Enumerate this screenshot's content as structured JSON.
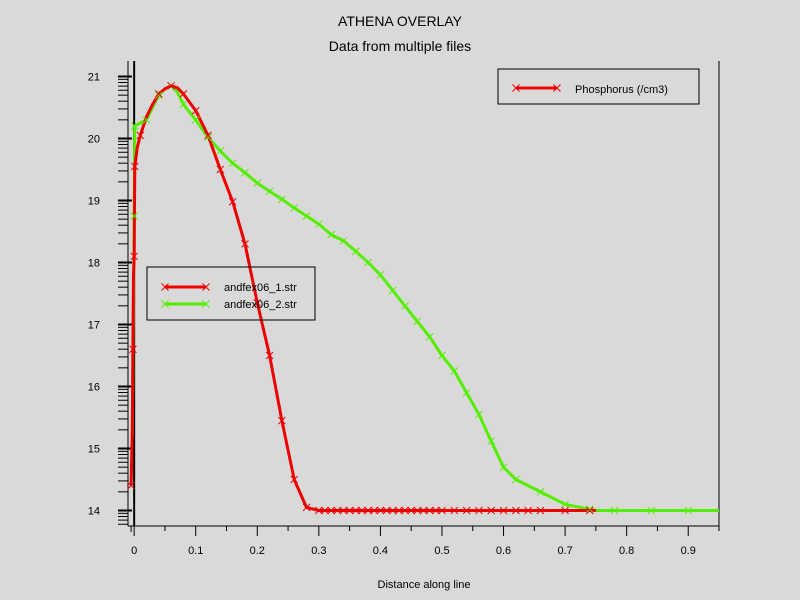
{
  "chart_data": {
    "type": "line",
    "title": "ATHENA OVERLAY",
    "subtitle": "Data from multiple files",
    "xlabel": "Distance along line",
    "ylabel": "",
    "xlim": [
      -0.01,
      0.95
    ],
    "ylim": [
      13.75,
      21.25
    ],
    "xticks": [
      0,
      0.1,
      0.2,
      0.3,
      0.4,
      0.5,
      0.6,
      0.7,
      0.8,
      0.9
    ],
    "xtick_labels": [
      "0",
      "0.1",
      "0.2",
      "0.3",
      "0.4",
      "0.5",
      "0.6",
      "0.7",
      "0.8",
      "0.9"
    ],
    "yticks": [
      14,
      15,
      16,
      17,
      18,
      19,
      20,
      21
    ],
    "ytick_labels": [
      "14",
      "15",
      "16",
      "17",
      "18",
      "19",
      "20",
      "21"
    ],
    "grid": false,
    "quantity_legend": {
      "label": "Phosphorus (/cm3)",
      "color": "#ee0000",
      "placement": "top-right"
    },
    "file_legend": {
      "placement": "center-left"
    },
    "series": [
      {
        "name": "andfex06_1.str",
        "color": "#ee0000",
        "points": [
          [
            -0.005,
            14.4
          ],
          [
            -0.003,
            15.3
          ],
          [
            -0.002,
            16.6
          ],
          [
            -0.001,
            17.8
          ],
          [
            0.0,
            18.1
          ],
          [
            0.0005,
            18.9
          ],
          [
            0.001,
            19.55
          ],
          [
            0.005,
            19.85
          ],
          [
            0.01,
            20.05
          ],
          [
            0.02,
            20.35
          ],
          [
            0.03,
            20.55
          ],
          [
            0.04,
            20.72
          ],
          [
            0.05,
            20.8
          ],
          [
            0.06,
            20.85
          ],
          [
            0.07,
            20.82
          ],
          [
            0.08,
            20.72
          ],
          [
            0.1,
            20.45
          ],
          [
            0.12,
            20.05
          ],
          [
            0.14,
            19.5
          ],
          [
            0.16,
            18.98
          ],
          [
            0.18,
            18.3
          ],
          [
            0.2,
            17.35
          ],
          [
            0.22,
            16.5
          ],
          [
            0.24,
            15.45
          ],
          [
            0.26,
            14.5
          ],
          [
            0.28,
            14.05
          ],
          [
            0.3,
            14.0
          ],
          [
            0.32,
            14.0
          ],
          [
            0.4,
            14.0
          ],
          [
            0.5,
            14.0
          ],
          [
            0.6,
            14.0
          ],
          [
            0.7,
            14.0
          ],
          [
            0.75,
            14.0
          ]
        ],
        "markers_x": [
          -0.005,
          -0.002,
          0.0,
          0.001,
          0.01,
          0.04,
          0.06,
          0.08,
          0.1,
          0.12,
          0.14,
          0.16,
          0.18,
          0.2,
          0.22,
          0.24,
          0.26,
          0.28,
          0.3,
          0.31,
          0.32,
          0.33,
          0.34,
          0.35,
          0.36,
          0.37,
          0.38,
          0.39,
          0.4,
          0.41,
          0.42,
          0.43,
          0.44,
          0.45,
          0.46,
          0.47,
          0.48,
          0.49,
          0.5,
          0.52,
          0.54,
          0.56,
          0.58,
          0.6,
          0.62,
          0.64,
          0.66,
          0.7,
          0.74
        ]
      },
      {
        "name": "andfex06_2.str",
        "color": "#55ee00",
        "points": [
          [
            -0.003,
            15.2
          ],
          [
            -0.002,
            16.3
          ],
          [
            -0.001,
            17.4
          ],
          [
            0.0,
            18.75
          ],
          [
            0.001,
            20.2
          ],
          [
            0.01,
            20.25
          ],
          [
            0.02,
            20.3
          ],
          [
            0.03,
            20.5
          ],
          [
            0.04,
            20.7
          ],
          [
            0.05,
            20.8
          ],
          [
            0.06,
            20.85
          ],
          [
            0.07,
            20.75
          ],
          [
            0.08,
            20.55
          ],
          [
            0.1,
            20.3
          ],
          [
            0.12,
            20.02
          ],
          [
            0.14,
            19.8
          ],
          [
            0.16,
            19.6
          ],
          [
            0.18,
            19.45
          ],
          [
            0.2,
            19.28
          ],
          [
            0.22,
            19.15
          ],
          [
            0.24,
            19.02
          ],
          [
            0.26,
            18.88
          ],
          [
            0.28,
            18.75
          ],
          [
            0.3,
            18.62
          ],
          [
            0.32,
            18.45
          ],
          [
            0.34,
            18.35
          ],
          [
            0.36,
            18.18
          ],
          [
            0.38,
            18.0
          ],
          [
            0.4,
            17.8
          ],
          [
            0.42,
            17.55
          ],
          [
            0.44,
            17.3
          ],
          [
            0.46,
            17.05
          ],
          [
            0.48,
            16.8
          ],
          [
            0.5,
            16.5
          ],
          [
            0.52,
            16.25
          ],
          [
            0.54,
            15.9
          ],
          [
            0.56,
            15.55
          ],
          [
            0.58,
            15.12
          ],
          [
            0.6,
            14.7
          ],
          [
            0.62,
            14.5
          ],
          [
            0.66,
            14.3
          ],
          [
            0.7,
            14.1
          ],
          [
            0.75,
            14.0
          ],
          [
            0.8,
            14.0
          ],
          [
            0.85,
            14.0
          ],
          [
            0.9,
            14.0
          ],
          [
            0.95,
            14.0
          ]
        ],
        "markers_x": [
          0.0,
          0.001,
          0.02,
          0.04,
          0.06,
          0.08,
          0.1,
          0.12,
          0.14,
          0.16,
          0.18,
          0.2,
          0.22,
          0.24,
          0.26,
          0.28,
          0.3,
          0.32,
          0.34,
          0.36,
          0.38,
          0.4,
          0.42,
          0.44,
          0.46,
          0.48,
          0.5,
          0.52,
          0.54,
          0.56,
          0.58,
          0.6,
          0.62,
          0.66,
          0.7,
          0.74,
          0.78,
          0.84,
          0.9
        ]
      }
    ]
  }
}
